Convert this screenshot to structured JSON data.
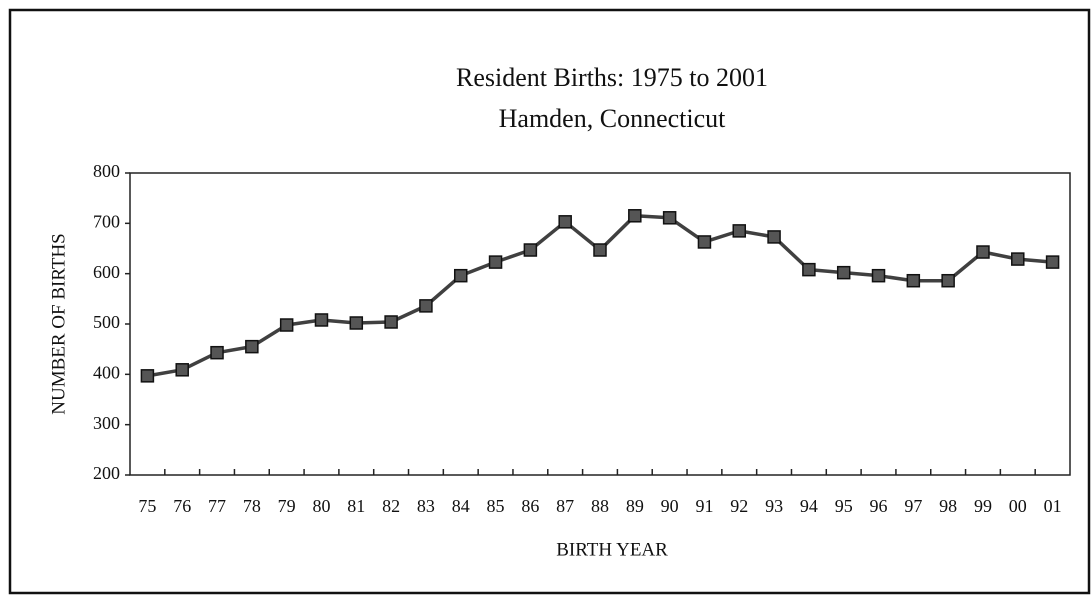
{
  "chart_data": {
    "type": "line",
    "title": "Resident Births: 1975 to 2001",
    "subtitle": "Hamden, Connecticut",
    "x_label": "BIRTH YEAR",
    "y_label": "NUMBER OF BIRTHS",
    "categories": [
      "75",
      "76",
      "77",
      "78",
      "79",
      "80",
      "81",
      "82",
      "83",
      "84",
      "85",
      "86",
      "87",
      "88",
      "89",
      "90",
      "91",
      "92",
      "93",
      "94",
      "95",
      "96",
      "97",
      "98",
      "99",
      "00",
      "01"
    ],
    "series": [
      {
        "name": "Resident Births",
        "color": "#404040",
        "values": [
          397,
          409,
          443,
          455,
          498,
          508,
          502,
          504,
          536,
          596,
          623,
          647,
          703,
          647,
          715,
          711,
          663,
          685,
          673,
          608,
          602,
          596,
          586,
          586,
          643,
          629,
          623
        ]
      }
    ],
    "ylim": [
      200,
      800
    ],
    "yticks": [
      200,
      300,
      400,
      500,
      600,
      700,
      800
    ],
    "grid": false,
    "marker": "square"
  }
}
